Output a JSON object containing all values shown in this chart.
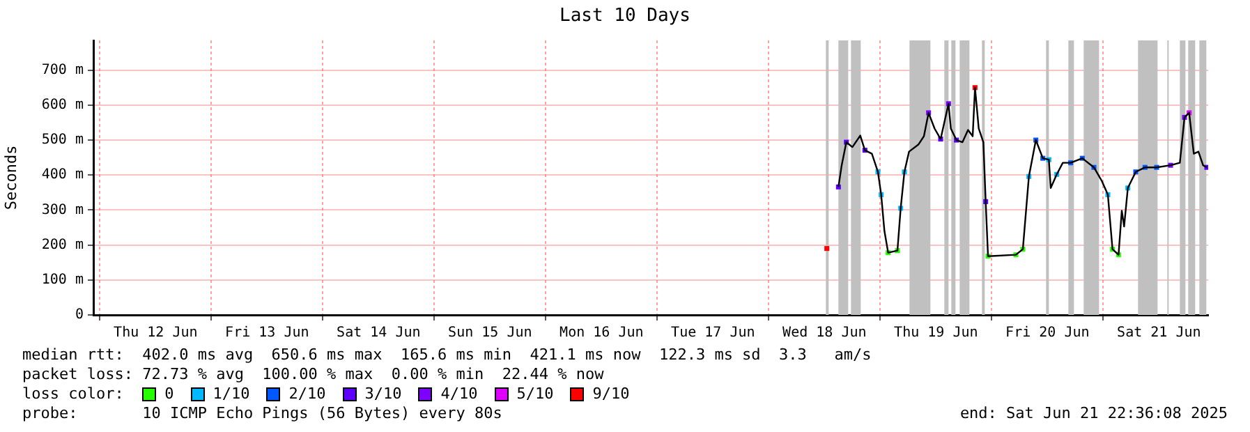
{
  "chart_data": {
    "type": "line",
    "title": "Last 10 Days",
    "ylabel": "Seconds",
    "legend_title": "loss color:",
    "legend": "bottom",
    "grid": true,
    "xlim": [
      "2025-06-11T22:36",
      "2025-06-21T22:36"
    ],
    "xticks": [
      {
        "value": "2025-06-12T00:00",
        "label": null
      },
      {
        "value": "2025-06-12T12:00",
        "label": "Thu 12 Jun"
      },
      {
        "value": "2025-06-13T00:00",
        "label": null
      },
      {
        "value": "2025-06-13T12:00",
        "label": "Fri 13 Jun"
      },
      {
        "value": "2025-06-14T00:00",
        "label": null
      },
      {
        "value": "2025-06-14T12:00",
        "label": "Sat 14 Jun"
      },
      {
        "value": "2025-06-15T00:00",
        "label": null
      },
      {
        "value": "2025-06-15T12:00",
        "label": "Sun 15 Jun"
      },
      {
        "value": "2025-06-16T00:00",
        "label": null
      },
      {
        "value": "2025-06-16T12:00",
        "label": "Mon 16 Jun"
      },
      {
        "value": "2025-06-17T00:00",
        "label": null
      },
      {
        "value": "2025-06-17T12:00",
        "label": "Tue 17 Jun"
      },
      {
        "value": "2025-06-18T00:00",
        "label": null
      },
      {
        "value": "2025-06-18T12:00",
        "label": "Wed 18 Jun"
      },
      {
        "value": "2025-06-19T00:00",
        "label": null
      },
      {
        "value": "2025-06-19T12:00",
        "label": "Thu 19 Jun"
      },
      {
        "value": "2025-06-20T00:00",
        "label": null
      },
      {
        "value": "2025-06-20T12:00",
        "label": "Fri 20 Jun"
      },
      {
        "value": "2025-06-21T00:00",
        "label": null
      },
      {
        "value": "2025-06-21T12:00",
        "label": "Sat 21 Jun"
      }
    ],
    "ylim": [
      0,
      785
    ],
    "yticks": [
      0,
      {
        "value": 100,
        "label": "100 m"
      },
      {
        "value": 200,
        "label": "200 m"
      },
      {
        "value": 300,
        "label": "300 m"
      },
      {
        "value": 400,
        "label": "400 m"
      },
      {
        "value": 500,
        "label": "500 m"
      },
      {
        "value": 600,
        "label": "600 m"
      },
      {
        "value": 700,
        "label": "700 m"
      }
    ],
    "bands": [
      {
        "axis": "x",
        "from": "2025-06-18T12:18",
        "to": "2025-06-18T12:54",
        "color": "#c0c0c0"
      },
      {
        "axis": "x",
        "from": "2025-06-18T15:00",
        "to": "2025-06-18T17:06",
        "color": "#c0c0c0"
      },
      {
        "axis": "x",
        "from": "2025-06-18T17:42",
        "to": "2025-06-18T19:48",
        "color": "#c0c0c0"
      },
      {
        "axis": "x",
        "from": "2025-06-19T06:18",
        "to": "2025-06-19T10:48",
        "color": "#c0c0c0"
      },
      {
        "axis": "x",
        "from": "2025-06-19T13:48",
        "to": "2025-06-19T14:42",
        "color": "#c0c0c0"
      },
      {
        "axis": "x",
        "from": "2025-06-19T15:18",
        "to": "2025-06-19T16:12",
        "color": "#c0c0c0"
      },
      {
        "axis": "x",
        "from": "2025-06-19T17:06",
        "to": "2025-06-19T19:12",
        "color": "#c0c0c0"
      },
      {
        "axis": "x",
        "from": "2025-06-19T21:54",
        "to": "2025-06-19T22:30",
        "color": "#c0c0c0"
      },
      {
        "axis": "x",
        "from": "2025-06-20T11:42",
        "to": "2025-06-20T12:18",
        "color": "#c0c0c0"
      },
      {
        "axis": "x",
        "from": "2025-06-20T16:30",
        "to": "2025-06-20T17:42",
        "color": "#c0c0c0"
      },
      {
        "axis": "x",
        "from": "2025-06-20T19:48",
        "to": "2025-06-20T23:06",
        "color": "#c0c0c0"
      },
      {
        "axis": "x",
        "from": "2025-06-21T07:30",
        "to": "2025-06-21T11:42",
        "color": "#c0c0c0"
      },
      {
        "axis": "x",
        "from": "2025-06-21T13:48",
        "to": "2025-06-21T14:06",
        "color": "#c0c0c0"
      },
      {
        "axis": "x",
        "from": "2025-06-21T16:30",
        "to": "2025-06-21T17:42",
        "color": "#c0c0c0"
      },
      {
        "axis": "x",
        "from": "2025-06-21T18:18",
        "to": "2025-06-21T19:48",
        "color": "#c0c0c0"
      },
      {
        "axis": "x",
        "from": "2025-06-21T20:42",
        "to": "2025-06-21T22:12",
        "color": "#c0c0c0"
      }
    ],
    "series": [
      {
        "type": "line",
        "color": "#000000",
        "marker": "none",
        "line_style": "solid",
        "x": [
          "2025-06-18T15:00",
          "2025-06-18T15:42",
          "2025-06-18T16:42",
          "2025-06-18T18:00",
          "2025-06-18T19:42",
          "2025-06-18T20:42",
          "2025-06-18T22:12",
          "2025-06-18T23:30",
          "2025-06-19T00:12",
          "2025-06-19T00:54",
          "2025-06-19T01:42",
          "2025-06-19T03:42",
          "2025-06-19T04:24",
          "2025-06-19T05:12",
          "2025-06-19T06:12",
          "2025-06-19T08:12",
          "2025-06-19T09:24",
          "2025-06-19T10:24",
          "2025-06-19T11:42",
          "2025-06-19T13:00",
          "2025-06-19T14:42",
          "2025-06-19T15:12",
          "2025-06-19T16:24",
          "2025-06-19T17:42",
          "2025-06-19T18:54",
          "2025-06-19T19:54",
          "2025-06-19T20:24",
          "2025-06-19T21:12",
          "2025-06-19T22:12",
          "2025-06-19T22:42",
          "2025-06-19T23:12",
          "2025-06-20T05:12",
          "2025-06-20T06:42",
          "2025-06-20T08:00",
          "2025-06-20T09:30",
          "2025-06-20T11:00",
          "2025-06-20T12:18",
          "2025-06-20T12:42",
          "2025-06-20T14:00",
          "2025-06-20T15:18",
          "2025-06-20T17:00",
          "2025-06-20T19:30",
          "2025-06-20T22:00",
          "2025-06-20T23:42",
          "2025-06-21T01:00",
          "2025-06-21T02:00",
          "2025-06-21T03:18",
          "2025-06-21T04:00",
          "2025-06-21T04:30",
          "2025-06-21T05:18",
          "2025-06-21T07:00",
          "2025-06-21T09:00",
          "2025-06-21T11:30",
          "2025-06-21T14:30",
          "2025-06-21T16:30",
          "2025-06-21T17:30",
          "2025-06-21T18:30",
          "2025-06-21T19:30",
          "2025-06-21T20:30",
          "2025-06-21T21:30",
          "2025-06-21T22:18"
        ],
        "values": [
          366,
          428,
          494,
          480,
          513,
          471,
          461,
          409,
          344,
          240,
          178,
          184,
          305,
          409,
          467,
          487,
          511,
          578,
          533,
          503,
          604,
          533,
          500,
          494,
          529,
          511,
          650,
          533,
          494,
          324,
          168,
          172,
          188,
          396,
          500,
          448,
          444,
          363,
          402,
          435,
          435,
          448,
          422,
          383,
          344,
          188,
          172,
          298,
          253,
          363,
          409,
          422,
          422,
          428,
          435,
          565,
          578,
          461,
          467,
          428,
          422
        ]
      },
      {
        "type": "scatter",
        "name": "0",
        "color": "#26ff00",
        "marker": "square",
        "x": [
          "2025-06-19T01:42",
          "2025-06-19T03:42",
          "2025-06-19T23:12",
          "2025-06-20T05:12",
          "2025-06-20T06:42",
          "2025-06-21T02:00",
          "2025-06-21T03:18"
        ],
        "values": [
          178,
          184,
          168,
          172,
          188,
          188,
          172
        ]
      },
      {
        "type": "scatter",
        "name": "1/10",
        "color": "#00b8ff",
        "marker": "square",
        "x": [
          "2025-06-18T23:30",
          "2025-06-19T00:12",
          "2025-06-19T04:24",
          "2025-06-19T05:12",
          "2025-06-20T08:00",
          "2025-06-20T12:18",
          "2025-06-20T14:00",
          "2025-06-21T01:00",
          "2025-06-21T05:18"
        ],
        "values": [
          409,
          344,
          305,
          409,
          396,
          444,
          402,
          344,
          363
        ]
      },
      {
        "type": "scatter",
        "name": "2/10",
        "color": "#0059ff",
        "marker": "square",
        "x": [
          "2025-06-20T09:30",
          "2025-06-20T11:00",
          "2025-06-20T17:00",
          "2025-06-20T19:30",
          "2025-06-20T22:00",
          "2025-06-21T07:00",
          "2025-06-21T09:00",
          "2025-06-21T11:30"
        ],
        "values": [
          500,
          448,
          435,
          448,
          422,
          409,
          422,
          422
        ]
      },
      {
        "type": "scatter",
        "name": "3/10",
        "color": "#5e00ff",
        "marker": "square",
        "x": [
          "2025-06-18T15:00",
          "2025-06-18T16:42",
          "2025-06-18T20:42",
          "2025-06-19T13:00",
          "2025-06-19T16:24",
          "2025-06-19T22:42",
          "2025-06-21T22:18"
        ],
        "values": [
          366,
          494,
          471,
          503,
          500,
          324,
          422
        ]
      },
      {
        "type": "scatter",
        "name": "4/10",
        "color": "#7e00ff",
        "marker": "square",
        "x": [
          "2025-06-19T10:24",
          "2025-06-19T14:42",
          "2025-06-21T14:30",
          "2025-06-21T17:30"
        ],
        "values": [
          578,
          604,
          428,
          565
        ]
      },
      {
        "type": "scatter",
        "name": "5/10",
        "color": "#dd00ff",
        "marker": "square",
        "x": [
          "2025-06-21T18:30"
        ],
        "values": [
          578
        ]
      },
      {
        "type": "scatter",
        "name": "9/10",
        "color": "#ff0000",
        "marker": "square",
        "x": [
          "2025-06-18T12:30",
          "2025-06-19T20:24"
        ],
        "values": [
          190,
          650
        ]
      }
    ],
    "annotations": [
      "median rtt:  402.0 ms avg  650.6 ms max  165.6 ms min  421.1 ms now  122.3 ms sd  3.3   am/s",
      "packet loss: 72.73 % avg  100.00 % max  0.00 % min  22.44 % now",
      "probe:       10 ICMP Echo Pings (56 Bytes) every 80s",
      "end: Sat Jun 21 22:36:08 2025"
    ]
  }
}
